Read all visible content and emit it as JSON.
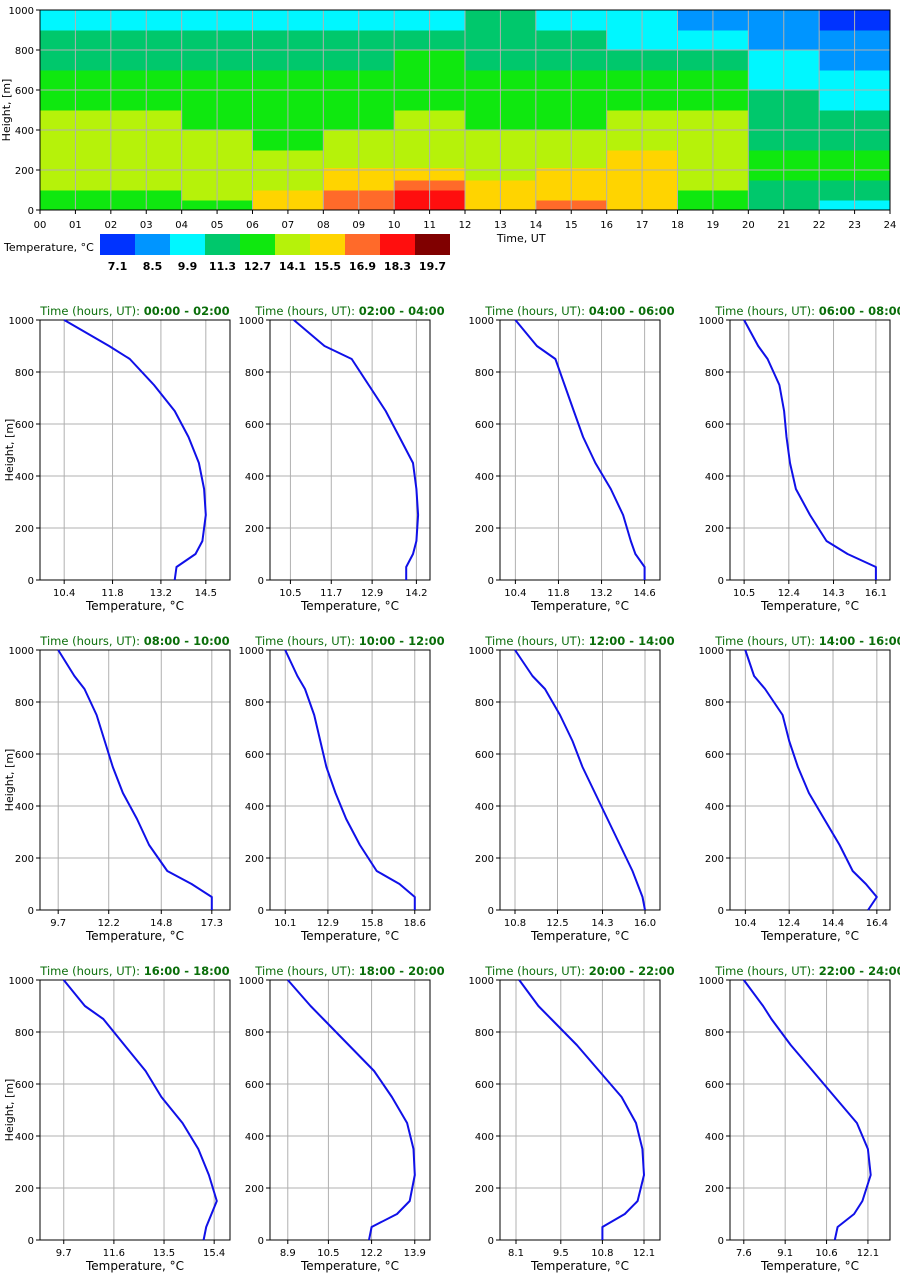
{
  "colors": {
    "line": "#1010e8",
    "panel_title": "#0a6e0a",
    "grid": "#b0b0b0",
    "scale": [
      "#0033ff",
      "#0095ff",
      "#00f7ff",
      "#00c86c",
      "#0fe80f",
      "#b6f20a",
      "#ffd400",
      "#ff6a2a",
      "#ff0e0e",
      "#800000"
    ]
  },
  "chart_data": [
    {
      "type": "heatmap",
      "xlabel": "Time, UT",
      "ylabel": "Height, [m]",
      "xlim": [
        0,
        24
      ],
      "ylim": [
        0,
        1000
      ],
      "x_ticks": [
        "00",
        "01",
        "02",
        "03",
        "04",
        "05",
        "06",
        "07",
        "08",
        "09",
        "10",
        "11",
        "12",
        "13",
        "14",
        "15",
        "16",
        "17",
        "18",
        "19",
        "20",
        "21",
        "22",
        "23",
        "24"
      ],
      "y_ticks": [
        "0",
        "200",
        "400",
        "600",
        "800",
        "1000"
      ],
      "heights": [
        25,
        75,
        125,
        175,
        250,
        350,
        450,
        550,
        650,
        750,
        850,
        950
      ],
      "colorbar": {
        "label": "Temperature, °C",
        "values": [
          "7.1",
          "8.5",
          "9.9",
          "11.3",
          "12.7",
          "14.1",
          "15.5",
          "16.9",
          "18.3",
          "19.7"
        ]
      },
      "rows": [
        {
          "t0": 0,
          "t1": 4,
          "v": [
            12.5,
            12.7,
            13.8,
            14.0,
            14.3,
            14.0,
            13.6,
            13.0,
            12.5,
            11.8,
            11.2,
            10.4
          ]
        },
        {
          "t0": 4,
          "t1": 6,
          "v": [
            13.0,
            13.6,
            13.9,
            14.1,
            14.1,
            13.7,
            13.3,
            12.9,
            12.3,
            11.8,
            11.0,
            10.5
          ]
        },
        {
          "t0": 6,
          "t1": 8,
          "v": [
            15.0,
            15.2,
            14.6,
            14.0,
            13.5,
            13.1,
            12.6,
            12.3,
            12.2,
            11.5,
            11.0,
            10.6
          ]
        },
        {
          "t0": 8,
          "t1": 10,
          "v": [
            17.0,
            16.8,
            15.8,
            15.1,
            14.4,
            13.8,
            13.3,
            12.6,
            12.3,
            11.8,
            11.0,
            10.4
          ]
        },
        {
          "t0": 10,
          "t1": 12,
          "v": [
            18.5,
            18.2,
            16.5,
            15.4,
            14.6,
            14.0,
            13.4,
            13.0,
            12.5,
            12.0,
            11.1,
            10.5
          ]
        },
        {
          "t0": 12,
          "t1": 14,
          "v": [
            16.0,
            15.5,
            15.0,
            14.7,
            14.3,
            13.8,
            13.3,
            12.8,
            12.3,
            11.8,
            11.3,
            11.0
          ]
        },
        {
          "t0": 14,
          "t1": 16,
          "v": [
            16.2,
            15.8,
            15.3,
            14.8,
            14.3,
            13.8,
            13.2,
            12.7,
            12.3,
            11.7,
            11.0,
            10.5
          ]
        },
        {
          "t0": 16,
          "t1": 18,
          "v": [
            14.8,
            15.0,
            15.2,
            15.1,
            14.8,
            14.0,
            13.5,
            12.9,
            12.2,
            11.5,
            10.5,
            9.9
          ]
        },
        {
          "t0": 18,
          "t1": 20,
          "v": [
            12.5,
            13.0,
            13.5,
            13.8,
            13.9,
            13.8,
            13.4,
            12.8,
            12.0,
            11.0,
            10.0,
            9.2
          ]
        },
        {
          "t0": 20,
          "t1": 22,
          "v": [
            11.0,
            11.6,
            11.9,
            12.0,
            12.1,
            11.9,
            11.6,
            11.0,
            10.2,
            9.5,
            8.8,
            8.3
          ]
        },
        {
          "t0": 22,
          "t1": 24,
          "v": [
            10.6,
            11.3,
            11.7,
            12.0,
            12.0,
            11.8,
            11.4,
            10.6,
            9.8,
            8.9,
            8.0,
            7.2
          ]
        }
      ]
    },
    {
      "type": "line",
      "title_prefix": "Time (hours, UT): ",
      "title_range": "00:00 - 02:00",
      "xlabel": "Temperature, °C",
      "ylabel": "Height, [m]",
      "ylim": [
        0,
        1000
      ],
      "xlim": [
        9.7,
        15.2
      ],
      "x_ticks": [
        "10.4",
        "11.8",
        "13.2",
        "14.5"
      ],
      "y_ticks": [
        "0",
        "200",
        "400",
        "600",
        "800",
        "1000"
      ],
      "x": [
        13.6,
        13.65,
        14.2,
        14.4,
        14.5,
        14.45,
        14.3,
        14.0,
        13.6,
        13.0,
        12.3,
        11.7,
        10.4
      ],
      "y": [
        0,
        50,
        100,
        150,
        250,
        350,
        450,
        550,
        650,
        750,
        850,
        900,
        1000
      ]
    },
    {
      "type": "line",
      "title_prefix": "Time (hours, UT): ",
      "title_range": "02:00 - 04:00",
      "xlabel": "Temperature, °C",
      "ylabel": "Height, [m]",
      "ylim": [
        0,
        1000
      ],
      "xlim": [
        9.9,
        14.6
      ],
      "x_ticks": [
        "10.5",
        "11.7",
        "12.9",
        "14.2"
      ],
      "y_ticks": [
        "0",
        "200",
        "400",
        "600",
        "800",
        "1000"
      ],
      "x": [
        13.9,
        13.9,
        14.1,
        14.2,
        14.25,
        14.2,
        14.1,
        13.7,
        13.3,
        12.8,
        12.3,
        11.5,
        10.6
      ],
      "y": [
        0,
        50,
        100,
        150,
        250,
        350,
        450,
        550,
        650,
        750,
        850,
        900,
        1000
      ]
    },
    {
      "type": "line",
      "title_prefix": "Time (hours, UT): ",
      "title_range": "04:00 - 06:00",
      "xlabel": "Temperature, °C",
      "ylabel": "Height, [m]",
      "ylim": [
        0,
        1000
      ],
      "xlim": [
        9.9,
        15.1
      ],
      "x_ticks": [
        "10.4",
        "11.8",
        "13.2",
        "14.6"
      ],
      "y_ticks": [
        "0",
        "200",
        "400",
        "600",
        "800",
        "1000"
      ],
      "x": [
        14.6,
        14.6,
        14.3,
        14.15,
        13.9,
        13.5,
        13.0,
        12.6,
        12.3,
        12.0,
        11.7,
        11.1,
        10.4
      ],
      "y": [
        0,
        50,
        100,
        150,
        250,
        350,
        450,
        550,
        650,
        750,
        850,
        900,
        1000
      ]
    },
    {
      "type": "line",
      "title_prefix": "Time (hours, UT): ",
      "title_range": "06:00 - 08:00",
      "xlabel": "Temperature, °C",
      "ylabel": "Height, [m]",
      "ylim": [
        0,
        1000
      ],
      "xlim": [
        9.9,
        16.7
      ],
      "x_ticks": [
        "10.5",
        "12.4",
        "14.3",
        "16.1"
      ],
      "y_ticks": [
        "0",
        "200",
        "400",
        "600",
        "800",
        "1000"
      ],
      "x": [
        16.1,
        16.1,
        14.9,
        14.0,
        13.3,
        12.7,
        12.45,
        12.3,
        12.2,
        12.0,
        11.5,
        11.1,
        10.5
      ],
      "y": [
        0,
        50,
        100,
        150,
        250,
        350,
        450,
        550,
        650,
        750,
        850,
        900,
        1000
      ]
    },
    {
      "type": "line",
      "title_prefix": "Time (hours, UT): ",
      "title_range": "08:00 - 10:00",
      "xlabel": "Temperature, °C",
      "ylabel": "Height, [m]",
      "ylim": [
        0,
        1000
      ],
      "xlim": [
        8.8,
        18.2
      ],
      "x_ticks": [
        "9.7",
        "12.2",
        "14.8",
        "17.3"
      ],
      "y_ticks": [
        "0",
        "200",
        "400",
        "600",
        "800",
        "1000"
      ],
      "x": [
        17.3,
        17.3,
        16.3,
        15.1,
        14.2,
        13.6,
        12.9,
        12.4,
        12.0,
        11.6,
        11.0,
        10.5,
        9.7
      ],
      "y": [
        0,
        50,
        100,
        150,
        250,
        350,
        450,
        550,
        650,
        750,
        850,
        900,
        1000
      ]
    },
    {
      "type": "line",
      "title_prefix": "Time (hours, UT): ",
      "title_range": "10:00 - 12:00",
      "xlabel": "Temperature, °C",
      "ylabel": "Height, [m]",
      "ylim": [
        0,
        1000
      ],
      "xlim": [
        9.1,
        19.6
      ],
      "x_ticks": [
        "10.1",
        "12.9",
        "15.8",
        "18.6"
      ],
      "y_ticks": [
        "0",
        "200",
        "400",
        "600",
        "800",
        "1000"
      ],
      "x": [
        18.6,
        18.6,
        17.6,
        16.1,
        15.0,
        14.1,
        13.4,
        12.8,
        12.4,
        12.0,
        11.4,
        10.9,
        10.1
      ],
      "y": [
        0,
        50,
        100,
        150,
        250,
        350,
        450,
        550,
        650,
        750,
        850,
        900,
        1000
      ]
    },
    {
      "type": "line",
      "title_prefix": "Time (hours, UT): ",
      "title_range": "12:00 - 14:00",
      "xlabel": "Temperature, °C",
      "ylabel": "Height, [m]",
      "ylim": [
        0,
        1000
      ],
      "xlim": [
        10.2,
        16.6
      ],
      "x_ticks": [
        "10.8",
        "12.5",
        "14.3",
        "16.0"
      ],
      "y_ticks": [
        "0",
        "200",
        "400",
        "600",
        "800",
        "1000"
      ],
      "x": [
        16.0,
        15.9,
        15.7,
        15.5,
        15.0,
        14.5,
        14.0,
        13.5,
        13.1,
        12.6,
        12.0,
        11.5,
        10.8
      ],
      "y": [
        0,
        50,
        100,
        150,
        250,
        350,
        450,
        550,
        650,
        750,
        850,
        900,
        1000
      ]
    },
    {
      "type": "line",
      "title_prefix": "Time (hours, UT): ",
      "title_range": "14:00 - 16:00",
      "xlabel": "Temperature, °C",
      "ylabel": "Height, [m]",
      "ylim": [
        0,
        1000
      ],
      "xlim": [
        9.7,
        17.0
      ],
      "x_ticks": [
        "10.4",
        "12.4",
        "14.4",
        "16.4"
      ],
      "y_ticks": [
        "0",
        "200",
        "400",
        "600",
        "800",
        "1000"
      ],
      "x": [
        16.0,
        16.4,
        15.9,
        15.3,
        14.7,
        14.0,
        13.3,
        12.8,
        12.4,
        12.1,
        11.3,
        10.8,
        10.4
      ],
      "y": [
        0,
        50,
        100,
        150,
        250,
        350,
        450,
        550,
        650,
        750,
        850,
        900,
        1000
      ]
    },
    {
      "type": "line",
      "title_prefix": "Time (hours, UT): ",
      "title_range": "16:00 - 18:00",
      "xlabel": "Temperature, °C",
      "ylabel": "Height, [m]",
      "ylim": [
        0,
        1000
      ],
      "xlim": [
        8.8,
        16.0
      ],
      "x_ticks": [
        "9.7",
        "11.6",
        "13.5",
        "15.4"
      ],
      "y_ticks": [
        "0",
        "200",
        "400",
        "600",
        "800",
        "1000"
      ],
      "x": [
        15.0,
        15.1,
        15.3,
        15.5,
        15.2,
        14.8,
        14.2,
        13.4,
        12.8,
        12.0,
        11.2,
        10.5,
        9.7
      ],
      "y": [
        0,
        50,
        100,
        150,
        250,
        350,
        450,
        550,
        650,
        750,
        850,
        900,
        1000
      ]
    },
    {
      "type": "line",
      "title_prefix": "Time (hours, UT): ",
      "title_range": "18:00 - 20:00",
      "xlabel": "Temperature, °C",
      "ylabel": "Height, [m]",
      "ylim": [
        0,
        1000
      ],
      "xlim": [
        8.2,
        14.5
      ],
      "x_ticks": [
        "8.9",
        "10.5",
        "12.2",
        "13.9"
      ],
      "y_ticks": [
        "0",
        "200",
        "400",
        "600",
        "800",
        "1000"
      ],
      "x": [
        12.1,
        12.2,
        13.2,
        13.7,
        13.9,
        13.85,
        13.6,
        13.0,
        12.3,
        11.3,
        10.3,
        9.8,
        8.9
      ],
      "y": [
        0,
        50,
        100,
        150,
        250,
        350,
        450,
        550,
        650,
        750,
        850,
        900,
        1000
      ]
    },
    {
      "type": "line",
      "title_prefix": "Time (hours, UT): ",
      "title_range": "20:00 - 22:00",
      "xlabel": "Temperature, °C",
      "ylabel": "Height, [m]",
      "ylim": [
        0,
        1000
      ],
      "xlim": [
        7.6,
        12.6
      ],
      "x_ticks": [
        "8.1",
        "9.5",
        "10.8",
        "12.1"
      ],
      "y_ticks": [
        "0",
        "200",
        "400",
        "600",
        "800",
        "1000"
      ],
      "x": [
        10.8,
        10.8,
        11.5,
        11.9,
        12.1,
        12.05,
        11.85,
        11.4,
        10.7,
        10.0,
        9.2,
        8.8,
        8.2
      ],
      "y": [
        0,
        50,
        100,
        150,
        250,
        350,
        450,
        550,
        650,
        750,
        850,
        900,
        1000
      ]
    },
    {
      "type": "line",
      "title_prefix": "Time (hours, UT): ",
      "title_range": "22:00 - 24:00",
      "xlabel": "Temperature, °C",
      "ylabel": "Height, [m]",
      "ylim": [
        0,
        1000
      ],
      "xlim": [
        7.1,
        12.9
      ],
      "x_ticks": [
        "7.6",
        "9.1",
        "10.6",
        "12.1"
      ],
      "y_ticks": [
        "0",
        "200",
        "400",
        "600",
        "800",
        "1000"
      ],
      "x": [
        10.9,
        11.0,
        11.6,
        11.9,
        12.2,
        12.1,
        11.7,
        10.9,
        10.1,
        9.3,
        8.6,
        8.3,
        7.6
      ],
      "y": [
        0,
        50,
        100,
        150,
        250,
        350,
        450,
        550,
        650,
        750,
        850,
        900,
        1000
      ]
    }
  ]
}
